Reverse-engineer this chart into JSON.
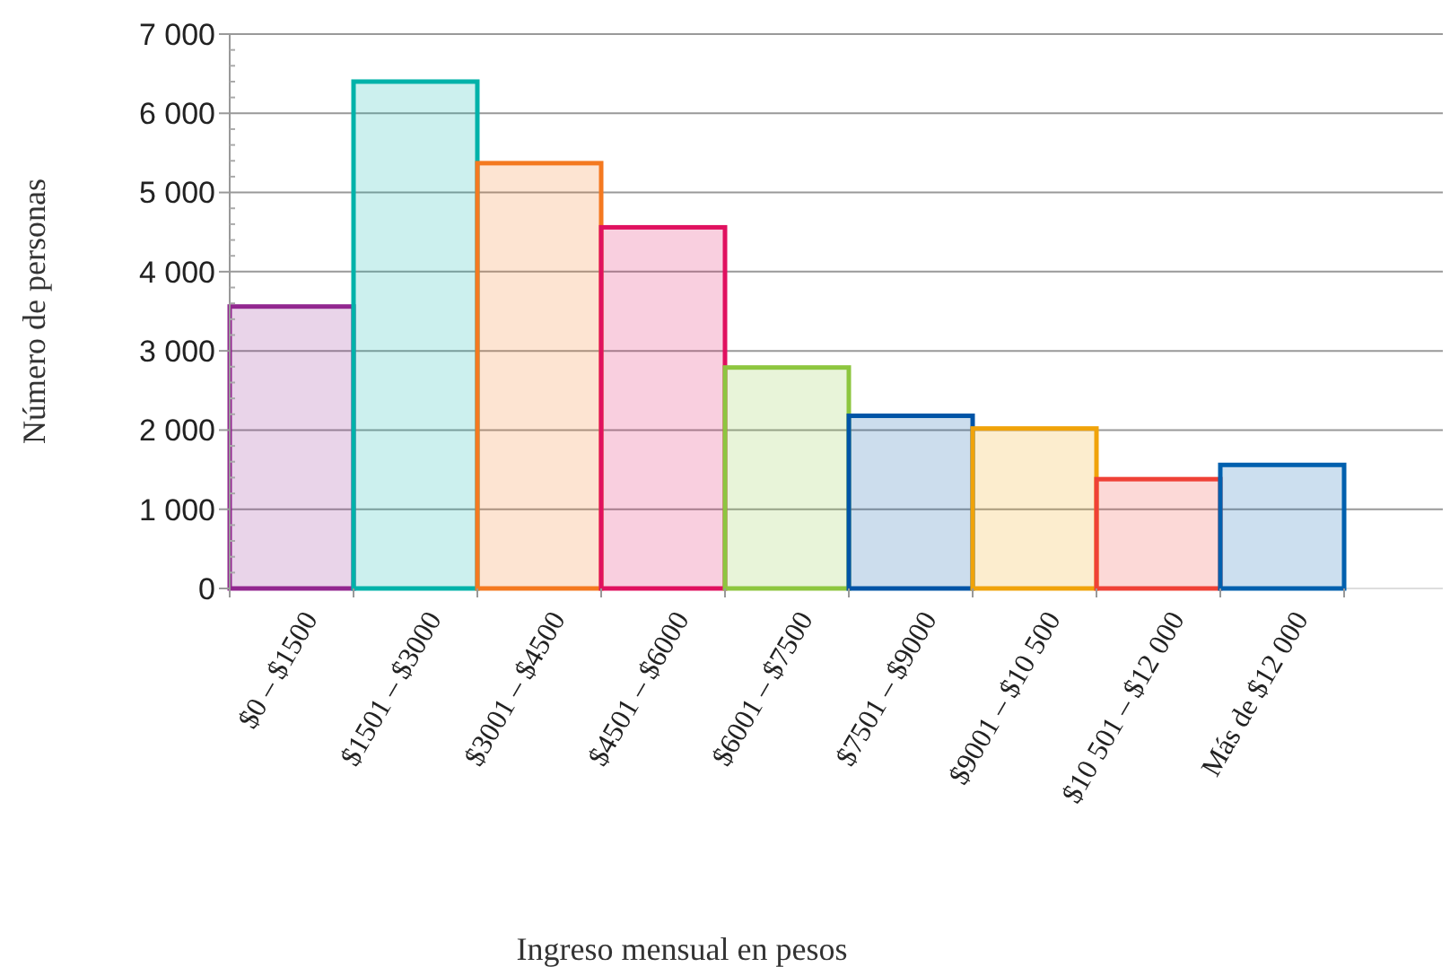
{
  "chart_data": {
    "type": "bar",
    "xlabel": "Ingreso mensual en pesos",
    "ylabel": "Número de personas",
    "categories": [
      "$0 – $1500",
      "$1501 – $3000",
      "$3001 – $4500",
      "$4501 – $6000",
      "$6001 – $7500",
      "$7501 – $9000",
      "$9001 – $10 500",
      "$10 501 – $12 000",
      "Más de $12 000"
    ],
    "values": [
      3560,
      6400,
      5370,
      4560,
      2790,
      2180,
      2020,
      1380,
      1560
    ],
    "colors": [
      "#92278f",
      "#00b2a9",
      "#f47920",
      "#e0115f",
      "#8dc63f",
      "#0054a6",
      "#f0a30a",
      "#ef4136",
      "#0060ae"
    ],
    "ylim": [
      0,
      7000
    ],
    "yticks": [
      {
        "value": 0,
        "label": "0"
      },
      {
        "value": 1000,
        "label": "1 000"
      },
      {
        "value": 2000,
        "label": "2 000"
      },
      {
        "value": 3000,
        "label": "3 000"
      },
      {
        "value": 4000,
        "label": "4 000"
      },
      {
        "value": 5000,
        "label": "5 000"
      },
      {
        "value": 6000,
        "label": "6 000"
      },
      {
        "value": 7000,
        "label": "7 000"
      }
    ],
    "grid": "y"
  }
}
